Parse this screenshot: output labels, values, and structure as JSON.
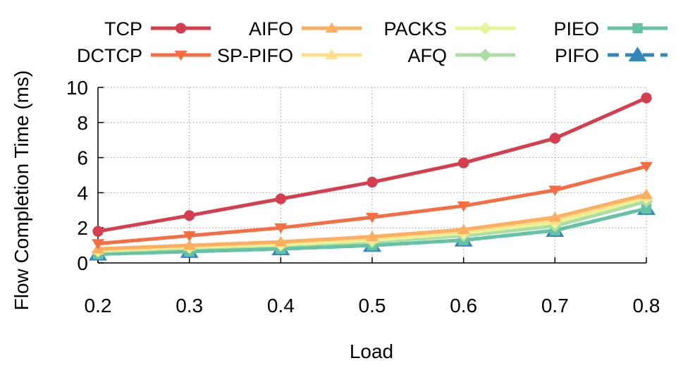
{
  "chart_data": {
    "type": "line",
    "title": "",
    "xlabel": "Load",
    "ylabel": "Flow Completion Time (ms)",
    "x": [
      0.2,
      0.3,
      0.4,
      0.5,
      0.6,
      0.7,
      0.8
    ],
    "x_tick_labels": [
      "0.2",
      "0.3",
      "0.4",
      "0.5",
      "0.6",
      "0.7",
      "0.8"
    ],
    "y_ticks": [
      0,
      2,
      4,
      6,
      8,
      10
    ],
    "y_tick_labels": [
      "0",
      "2",
      "4",
      "6",
      "8",
      "10"
    ],
    "xlim": [
      0.2,
      0.8
    ],
    "ylim": [
      0,
      10
    ],
    "grid": "dotted",
    "legend_position": "top",
    "series": [
      {
        "name": "TCP",
        "color": "#d53e4f",
        "marker": "circle",
        "dash": false,
        "values": [
          1.8,
          2.7,
          3.65,
          4.6,
          5.7,
          7.1,
          9.4
        ]
      },
      {
        "name": "DCTCP",
        "color": "#f46d43",
        "marker": "triangle-down",
        "dash": false,
        "values": [
          1.1,
          1.55,
          2.0,
          2.6,
          3.25,
          4.15,
          5.5
        ]
      },
      {
        "name": "AIFO",
        "color": "#fdae61",
        "marker": "triangle-up",
        "dash": false,
        "values": [
          0.8,
          1.0,
          1.2,
          1.5,
          1.9,
          2.6,
          3.9
        ]
      },
      {
        "name": "SP-PIFO",
        "color": "#fee08b",
        "marker": "triangle-up",
        "dash": false,
        "values": [
          0.75,
          0.95,
          1.15,
          1.4,
          1.8,
          2.45,
          3.8
        ]
      },
      {
        "name": "PACKS",
        "color": "#e6f598",
        "marker": "diamond",
        "dash": false,
        "values": [
          0.7,
          0.9,
          1.05,
          1.3,
          1.7,
          2.3,
          3.7
        ]
      },
      {
        "name": "AFQ",
        "color": "#abdda4",
        "marker": "diamond",
        "dash": false,
        "values": [
          0.65,
          0.85,
          1.0,
          1.2,
          1.55,
          2.1,
          3.5
        ]
      },
      {
        "name": "PIEO",
        "color": "#66c2a5",
        "marker": "square",
        "dash": false,
        "values": [
          0.5,
          0.65,
          0.8,
          1.0,
          1.3,
          1.85,
          3.1
        ]
      },
      {
        "name": "PIFO",
        "color": "#3288bd",
        "marker": "triangle-up",
        "dash": true,
        "values": [
          0.5,
          0.65,
          0.8,
          1.0,
          1.3,
          1.85,
          3.1
        ]
      }
    ]
  }
}
